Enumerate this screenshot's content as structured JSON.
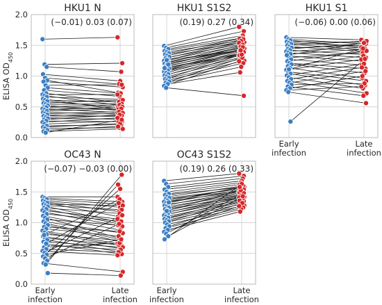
{
  "figure": {
    "ylabel_main": "ELISA OD",
    "ylabel_sub": "450",
    "x_categories": [
      "Early\ninfection",
      "Late\ninfection"
    ],
    "y_ticks": [
      "0.0",
      "0.5",
      "1.0",
      "1.5",
      "2.0"
    ],
    "colors": {
      "early": "#3b7fc4",
      "late": "#d62728",
      "line": "#1a1a1a",
      "grid": "#d4d4d4",
      "spine": "#b8b8b8"
    }
  },
  "chart_data": [
    {
      "type": "scatter",
      "title": "HKU1 N",
      "annotation": "(−0.01) 0.03 (0.07)",
      "ylim": [
        0,
        2
      ],
      "grid": true,
      "categories": [
        "Early infection",
        "Late infection"
      ],
      "pairs": [
        [
          1.6,
          1.63
        ],
        [
          1.19,
          1.21
        ],
        [
          1.15,
          1.07
        ],
        [
          1.03,
          0.92
        ],
        [
          0.97,
          0.87
        ],
        [
          0.93,
          0.73
        ],
        [
          0.91,
          0.82
        ],
        [
          0.85,
          0.86
        ],
        [
          0.81,
          0.72
        ],
        [
          0.77,
          0.67
        ],
        [
          0.72,
          0.57
        ],
        [
          0.7,
          0.7
        ],
        [
          0.68,
          0.52
        ],
        [
          0.66,
          0.62
        ],
        [
          0.63,
          0.45
        ],
        [
          0.61,
          0.58
        ],
        [
          0.59,
          0.49
        ],
        [
          0.56,
          0.61
        ],
        [
          0.54,
          0.55
        ],
        [
          0.52,
          0.44
        ],
        [
          0.5,
          0.53
        ],
        [
          0.49,
          0.46
        ],
        [
          0.47,
          0.41
        ],
        [
          0.45,
          0.5
        ],
        [
          0.43,
          0.47
        ],
        [
          0.41,
          0.38
        ],
        [
          0.39,
          0.42
        ],
        [
          0.37,
          0.34
        ],
        [
          0.35,
          0.4
        ],
        [
          0.33,
          0.36
        ],
        [
          0.31,
          0.3
        ],
        [
          0.29,
          0.37
        ],
        [
          0.27,
          0.26
        ],
        [
          0.25,
          0.32
        ],
        [
          0.22,
          0.27
        ],
        [
          0.19,
          0.21
        ],
        [
          0.17,
          0.23
        ],
        [
          0.15,
          0.16
        ],
        [
          0.12,
          0.18
        ],
        [
          0.1,
          0.14
        ],
        [
          0.08,
          0.29
        ]
      ]
    },
    {
      "type": "scatter",
      "title": "HKU1 S1S2",
      "annotation": "(0.19) 0.27 (0.34)",
      "ylim": [
        0,
        2
      ],
      "grid": true,
      "categories": [
        "Early infection",
        "Late infection"
      ],
      "pairs": [
        [
          1.49,
          1.8
        ],
        [
          1.46,
          1.73
        ],
        [
          1.44,
          1.66
        ],
        [
          1.41,
          1.62
        ],
        [
          1.39,
          1.58
        ],
        [
          1.37,
          1.61
        ],
        [
          1.35,
          1.55
        ],
        [
          1.33,
          1.6
        ],
        [
          1.31,
          1.52
        ],
        [
          1.29,
          1.57
        ],
        [
          1.27,
          1.49
        ],
        [
          1.25,
          1.54
        ],
        [
          1.23,
          1.46
        ],
        [
          1.22,
          1.51
        ],
        [
          1.2,
          1.43
        ],
        [
          1.18,
          1.48
        ],
        [
          1.17,
          1.41
        ],
        [
          1.15,
          1.45
        ],
        [
          1.14,
          1.38
        ],
        [
          1.12,
          1.44
        ],
        [
          1.1,
          1.36
        ],
        [
          1.09,
          1.4
        ],
        [
          1.07,
          1.33
        ],
        [
          1.05,
          1.39
        ],
        [
          1.03,
          1.31
        ],
        [
          1.01,
          1.36
        ],
        [
          0.99,
          1.28
        ],
        [
          0.97,
          1.34
        ],
        [
          0.95,
          1.25
        ],
        [
          0.93,
          1.21
        ],
        [
          0.91,
          1.3
        ],
        [
          0.89,
          1.15
        ],
        [
          0.87,
          1.06
        ],
        [
          0.84,
          1.24
        ],
        [
          0.81,
          0.68
        ],
        [
          1.19,
          1.47
        ],
        [
          1.13,
          1.35
        ],
        [
          1.26,
          1.42
        ]
      ]
    },
    {
      "type": "scatter",
      "title": "HKU1 S1",
      "annotation": "(−0.06) 0.00 (0.06)",
      "ylim": [
        0,
        2
      ],
      "grid": true,
      "categories": [
        "Early infection",
        "Late infection"
      ],
      "pairs": [
        [
          1.63,
          1.59
        ],
        [
          1.6,
          1.52
        ],
        [
          1.58,
          1.46
        ],
        [
          1.56,
          1.55
        ],
        [
          1.54,
          1.49
        ],
        [
          1.52,
          1.43
        ],
        [
          1.5,
          1.57
        ],
        [
          1.48,
          1.4
        ],
        [
          1.46,
          1.5
        ],
        [
          1.44,
          1.53
        ],
        [
          1.42,
          1.35
        ],
        [
          1.4,
          1.47
        ],
        [
          1.38,
          1.3
        ],
        [
          1.36,
          1.44
        ],
        [
          1.33,
          1.24
        ],
        [
          1.3,
          1.38
        ],
        [
          1.27,
          1.18
        ],
        [
          1.24,
          1.41
        ],
        [
          1.21,
          1.12
        ],
        [
          1.19,
          1.05
        ],
        [
          1.16,
          1.33
        ],
        [
          1.13,
          0.97
        ],
        [
          1.1,
          1.27
        ],
        [
          1.07,
          0.92
        ],
        [
          1.04,
          0.85
        ],
        [
          1.01,
          1.2
        ],
        [
          0.98,
          0.8
        ],
        [
          0.95,
          1.14
        ],
        [
          0.92,
          0.72
        ],
        [
          0.89,
          1.08
        ],
        [
          0.86,
          0.88
        ],
        [
          0.83,
          0.68
        ],
        [
          0.8,
          1.0
        ],
        [
          0.77,
          0.83
        ],
        [
          0.74,
          0.56
        ],
        [
          0.26,
          1.28
        ],
        [
          1.34,
          1.54
        ],
        [
          1.11,
          1.45
        ]
      ]
    },
    {
      "type": "scatter",
      "title": "OC43 N",
      "annotation": "(−0.07) −0.03 (0.00)",
      "ylim": [
        0,
        2
      ],
      "grid": true,
      "categories": [
        "Early infection",
        "Late infection"
      ],
      "pairs": [
        [
          1.42,
          1.42
        ],
        [
          1.4,
          1.34
        ],
        [
          1.38,
          1.3
        ],
        [
          1.36,
          1.25
        ],
        [
          1.34,
          1.18
        ],
        [
          1.32,
          1.1
        ],
        [
          1.3,
          1.28
        ],
        [
          1.28,
          1.21
        ],
        [
          1.26,
          1.0
        ],
        [
          1.24,
          1.15
        ],
        [
          1.22,
          0.98
        ],
        [
          1.2,
          1.06
        ],
        [
          1.17,
          0.94
        ],
        [
          1.14,
          1.02
        ],
        [
          1.11,
          0.88
        ],
        [
          1.08,
          0.75
        ],
        [
          1.05,
          0.96
        ],
        [
          1.02,
          0.83
        ],
        [
          0.99,
          0.72
        ],
        [
          0.96,
          0.69
        ],
        [
          0.93,
          0.86
        ],
        [
          0.9,
          0.78
        ],
        [
          0.87,
          0.66
        ],
        [
          0.84,
          0.62
        ],
        [
          0.81,
          0.71
        ],
        [
          0.78,
          0.58
        ],
        [
          0.75,
          0.64
        ],
        [
          0.72,
          0.53
        ],
        [
          0.69,
          0.6
        ],
        [
          0.66,
          0.49
        ],
        [
          0.63,
          0.56
        ],
        [
          0.6,
          0.67
        ],
        [
          0.57,
          0.52
        ],
        [
          0.54,
          0.47
        ],
        [
          0.51,
          1.12
        ],
        [
          0.48,
          0.73
        ],
        [
          0.45,
          1.55
        ],
        [
          0.42,
          0.98
        ],
        [
          0.38,
          1.62
        ],
        [
          0.34,
          0.2
        ],
        [
          0.32,
          1.78
        ],
        [
          0.18,
          0.14
        ],
        [
          0.8,
          1.38
        ],
        [
          0.66,
          1.32
        ]
      ]
    },
    {
      "type": "scatter",
      "title": "OC43 S1S2",
      "annotation": "(0.19) 0.26 (0.33)",
      "ylim": [
        0,
        2
      ],
      "grid": true,
      "categories": [
        "Early infection",
        "Late infection"
      ],
      "pairs": [
        [
          1.68,
          1.8
        ],
        [
          1.63,
          1.76
        ],
        [
          1.58,
          1.72
        ],
        [
          1.54,
          1.68
        ],
        [
          1.5,
          1.65
        ],
        [
          1.47,
          1.62
        ],
        [
          1.45,
          1.58
        ],
        [
          1.42,
          1.6
        ],
        [
          1.4,
          1.55
        ],
        [
          1.38,
          1.52
        ],
        [
          1.36,
          1.57
        ],
        [
          1.34,
          1.5
        ],
        [
          1.32,
          1.54
        ],
        [
          1.3,
          1.47
        ],
        [
          1.28,
          1.51
        ],
        [
          1.26,
          1.45
        ],
        [
          1.24,
          1.49
        ],
        [
          1.22,
          1.42
        ],
        [
          1.2,
          1.46
        ],
        [
          1.18,
          1.4
        ],
        [
          1.16,
          1.44
        ],
        [
          1.14,
          1.37
        ],
        [
          1.12,
          1.41
        ],
        [
          1.1,
          1.35
        ],
        [
          1.08,
          1.39
        ],
        [
          1.06,
          1.33
        ],
        [
          1.04,
          1.3
        ],
        [
          1.02,
          1.36
        ],
        [
          1.0,
          1.28
        ],
        [
          0.97,
          1.25
        ],
        [
          0.94,
          1.32
        ],
        [
          0.91,
          1.22
        ],
        [
          0.88,
          1.18
        ],
        [
          0.85,
          1.27
        ],
        [
          0.82,
          1.48
        ],
        [
          0.78,
          1.43
        ],
        [
          0.73,
          1.63
        ],
        [
          1.19,
          1.53
        ],
        [
          1.33,
          1.58
        ]
      ]
    }
  ]
}
